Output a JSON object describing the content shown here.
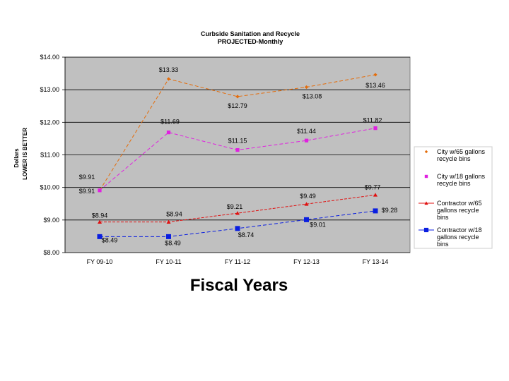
{
  "chart_data": {
    "type": "line",
    "title": "Curbside Sanitation and Recycle",
    "subtitle": "PROJECTED-Monthly",
    "xlabel": "Fiscal Years",
    "ylabel": "Dollars",
    "ylabel_note": "LOWER IS BETTER",
    "categories": [
      "FY 09-10",
      "FY 10-11",
      "FY 11-12",
      "FY 12-13",
      "FY 13-14"
    ],
    "ylim": [
      8,
      14
    ],
    "yticks": [
      8,
      9,
      10,
      11,
      12,
      13,
      14
    ],
    "ytick_labels": [
      "$8.00",
      "$9.00",
      "$10.00",
      "$11.00",
      "$12.00",
      "$13.00",
      "$14.00"
    ],
    "grid": true,
    "legend_position": "right",
    "plot_background": "#c0c0c0",
    "series": [
      {
        "name": "City w/65 gallons recycle bins",
        "color": "#e46c0a",
        "marker": "diamond",
        "values": [
          9.91,
          13.33,
          12.79,
          13.08,
          13.46
        ],
        "labels": [
          "$9.91",
          "$13.33",
          "$12.79",
          "$13.08",
          "$13.46"
        ]
      },
      {
        "name": "City w/18 gallons recycle bins",
        "color": "#e020e0",
        "marker": "square",
        "values": [
          9.91,
          11.69,
          11.15,
          11.44,
          11.82
        ],
        "labels": [
          "$9.91",
          "$11.69",
          "$11.15",
          "$11.44",
          "$11.82"
        ]
      },
      {
        "name": "Contractor w/65 gallons recycle bins",
        "color": "#e01010",
        "marker": "triangle",
        "values": [
          8.94,
          8.94,
          9.21,
          9.49,
          9.77
        ],
        "labels": [
          "$8.94",
          "$8.94",
          "$9.21",
          "$9.49",
          "$9.77"
        ]
      },
      {
        "name": "Contractor w/18 gallons recycle bins",
        "color": "#0a1ee0",
        "marker": "square",
        "values": [
          8.49,
          8.49,
          8.74,
          9.01,
          9.28
        ],
        "labels": [
          "$8.49",
          "$8.49",
          "$8.74",
          "$9.01",
          "$9.28"
        ]
      }
    ]
  }
}
